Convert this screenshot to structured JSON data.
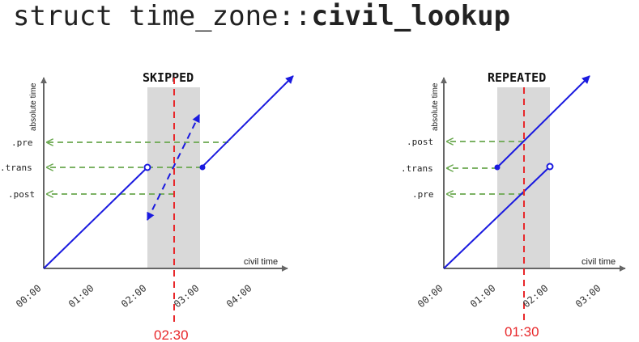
{
  "title": {
    "prefix": "struct time_zone::",
    "name": "civil_lookup"
  },
  "colors": {
    "line": "#1a1adf",
    "guide": "#6aa84f",
    "marker": "#e8282b",
    "shade": "#d9d9d9",
    "axis": "#666666"
  },
  "panels": [
    {
      "id": "skipped",
      "heading": "SKIPPED",
      "y_axis_label": "absolute time",
      "x_axis_label": "civil time",
      "ticks": [
        "00:00",
        "01:00",
        "02:00",
        "03:00",
        "04:00"
      ],
      "labels": [
        ".pre",
        ".trans",
        ".post"
      ],
      "marker": "02:30"
    },
    {
      "id": "repeated",
      "heading": "REPEATED",
      "y_axis_label": "absolute time",
      "x_axis_label": "civil time",
      "ticks": [
        "00:00",
        "01:00",
        "02:00",
        "03:00"
      ],
      "labels": [
        ".post",
        ".trans",
        ".pre"
      ],
      "marker": "01:30"
    }
  ]
}
